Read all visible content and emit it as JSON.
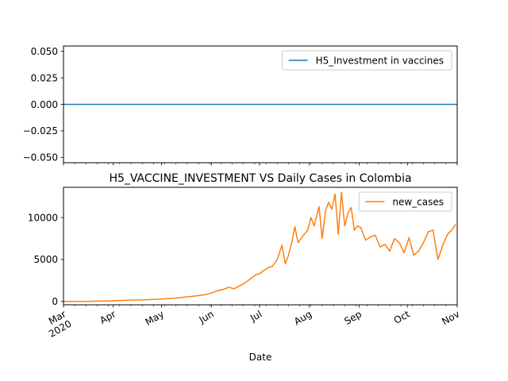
{
  "chart_data": [
    {
      "type": "line",
      "title": "",
      "xlabel": "",
      "ylabel": "",
      "ylim": [
        -0.055,
        0.055
      ],
      "yticks": [
        0.05,
        0.025,
        0.0,
        -0.025,
        -0.05
      ],
      "ytick_labels": [
        "0.050",
        "0.025",
        "0.000",
        "−0.025",
        "−0.050"
      ],
      "grid": false,
      "legend": "upper-right",
      "series": [
        {
          "name": "H5_Investment in vaccines",
          "color": "#1f77b4",
          "x": [
            "2020-03-01",
            "2020-11-01"
          ],
          "values": [
            0,
            0
          ]
        }
      ]
    },
    {
      "type": "line",
      "title": "H5_VACCINE_INVESTMENT VS Daily Cases in Colombia",
      "xlabel": "Date",
      "ylabel": "",
      "ylim": [
        -400,
        13600
      ],
      "yticks": [
        0,
        5000,
        10000
      ],
      "ytick_labels": [
        "0",
        "5000",
        "10000"
      ],
      "xticks": [
        "2020-03-01",
        "2020-04-01",
        "2020-05-01",
        "2020-06-01",
        "2020-07-01",
        "2020-08-01",
        "2020-09-01",
        "2020-10-01",
        "2020-11-01"
      ],
      "xtick_labels": [
        "Mar\n2020",
        "Apr",
        "May",
        "Jun",
        "Jul",
        "Aug",
        "Sep",
        "Oct",
        "Nov"
      ],
      "grid": false,
      "legend": "upper-right",
      "series": [
        {
          "name": "new_cases",
          "color": "#ff7f0e",
          "x": [
            "2020-03-01",
            "2020-03-15",
            "2020-04-01",
            "2020-04-10",
            "2020-04-20",
            "2020-05-01",
            "2020-05-10",
            "2020-05-20",
            "2020-05-28",
            "2020-06-01",
            "2020-06-05",
            "2020-06-08",
            "2020-06-12",
            "2020-06-15",
            "2020-06-19",
            "2020-06-22",
            "2020-06-26",
            "2020-06-29",
            "2020-07-01",
            "2020-07-03",
            "2020-07-06",
            "2020-07-09",
            "2020-07-12",
            "2020-07-15",
            "2020-07-17",
            "2020-07-19",
            "2020-07-21",
            "2020-07-23",
            "2020-07-25",
            "2020-07-28",
            "2020-07-31",
            "2020-08-02",
            "2020-08-04",
            "2020-08-07",
            "2020-08-09",
            "2020-08-11",
            "2020-08-13",
            "2020-08-15",
            "2020-08-17",
            "2020-08-19",
            "2020-08-21",
            "2020-08-23",
            "2020-08-25",
            "2020-08-27",
            "2020-08-29",
            "2020-08-31",
            "2020-09-02",
            "2020-09-05",
            "2020-09-08",
            "2020-09-11",
            "2020-09-14",
            "2020-09-17",
            "2020-09-20",
            "2020-09-23",
            "2020-09-26",
            "2020-09-29",
            "2020-10-02",
            "2020-10-05",
            "2020-10-08",
            "2020-10-11",
            "2020-10-14",
            "2020-10-17",
            "2020-10-20",
            "2020-10-23",
            "2020-10-26",
            "2020-10-29",
            "2020-10-31"
          ],
          "values": [
            0,
            10,
            80,
            150,
            200,
            280,
            400,
            600,
            800,
            1000,
            1300,
            1400,
            1700,
            1500,
            1900,
            2200,
            2800,
            3200,
            3300,
            3600,
            4000,
            4200,
            5000,
            6700,
            4500,
            5500,
            7000,
            8900,
            7000,
            7800,
            8500,
            10000,
            9000,
            11300,
            7500,
            10800,
            11800,
            11000,
            12800,
            8000,
            13000,
            9000,
            10500,
            11200,
            8500,
            9000,
            8800,
            7300,
            7700,
            7900,
            6500,
            6800,
            6000,
            7500,
            7000,
            5800,
            7600,
            5500,
            6000,
            7000,
            8300,
            8500,
            5000,
            6700,
            8000,
            8600,
            9200
          ]
        }
      ]
    }
  ]
}
